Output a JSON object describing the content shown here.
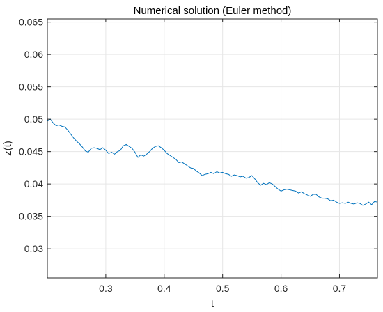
{
  "chart_data": {
    "type": "line",
    "title": "Numerical solution (Euler method)",
    "xlabel": "t",
    "ylabel": "z(t)",
    "xlim": [
      0.2,
      0.765
    ],
    "ylim": [
      0.0255,
      0.0655
    ],
    "xticks": [
      0.3,
      0.4,
      0.5,
      0.6,
      0.7
    ],
    "xtick_labels": [
      "0.3",
      "0.4",
      "0.5",
      "0.6",
      "0.7"
    ],
    "yticks": [
      0.03,
      0.035,
      0.04,
      0.045,
      0.05,
      0.055,
      0.06,
      0.065
    ],
    "ytick_labels": [
      "0.03",
      "0.035",
      "0.04",
      "0.045",
      "0.05",
      "0.055",
      "0.06",
      "0.065"
    ],
    "grid": true,
    "series": [
      {
        "color": "#0072BD",
        "x": [
          0.2,
          0.205,
          0.21,
          0.215,
          0.22,
          0.225,
          0.23,
          0.235,
          0.24,
          0.245,
          0.25,
          0.255,
          0.26,
          0.265,
          0.27,
          0.275,
          0.28,
          0.285,
          0.29,
          0.295,
          0.3,
          0.305,
          0.31,
          0.315,
          0.32,
          0.325,
          0.33,
          0.335,
          0.34,
          0.345,
          0.35,
          0.355,
          0.36,
          0.365,
          0.37,
          0.375,
          0.38,
          0.385,
          0.39,
          0.395,
          0.4,
          0.405,
          0.41,
          0.415,
          0.42,
          0.425,
          0.43,
          0.435,
          0.44,
          0.445,
          0.45,
          0.455,
          0.46,
          0.465,
          0.47,
          0.475,
          0.48,
          0.485,
          0.49,
          0.495,
          0.5,
          0.505,
          0.51,
          0.515,
          0.52,
          0.525,
          0.53,
          0.535,
          0.54,
          0.545,
          0.55,
          0.555,
          0.56,
          0.565,
          0.57,
          0.575,
          0.58,
          0.585,
          0.59,
          0.595,
          0.6,
          0.605,
          0.61,
          0.615,
          0.62,
          0.625,
          0.63,
          0.635,
          0.64,
          0.645,
          0.65,
          0.655,
          0.66,
          0.665,
          0.67,
          0.675,
          0.68,
          0.685,
          0.69,
          0.695,
          0.7,
          0.705,
          0.71,
          0.715,
          0.72,
          0.725,
          0.73,
          0.735,
          0.74,
          0.745,
          0.75,
          0.755,
          0.76,
          0.765
        ],
        "y": [
          0.0497,
          0.05,
          0.0494,
          0.049,
          0.0491,
          0.0489,
          0.0488,
          0.0483,
          0.0477,
          0.0471,
          0.0466,
          0.0462,
          0.0457,
          0.0451,
          0.0449,
          0.0455,
          0.0456,
          0.0455,
          0.0453,
          0.0456,
          0.0452,
          0.0447,
          0.0449,
          0.0446,
          0.045,
          0.0452,
          0.0459,
          0.0461,
          0.0458,
          0.0455,
          0.0449,
          0.0441,
          0.0445,
          0.0443,
          0.0446,
          0.045,
          0.0455,
          0.0458,
          0.0459,
          0.0456,
          0.0452,
          0.0447,
          0.0444,
          0.0441,
          0.0438,
          0.0433,
          0.0434,
          0.0431,
          0.0428,
          0.0425,
          0.0424,
          0.042,
          0.0417,
          0.0413,
          0.0415,
          0.0416,
          0.0418,
          0.0416,
          0.0419,
          0.0417,
          0.0418,
          0.0416,
          0.0415,
          0.0412,
          0.0414,
          0.0413,
          0.0411,
          0.0412,
          0.0409,
          0.041,
          0.0413,
          0.0408,
          0.0402,
          0.0398,
          0.0401,
          0.0399,
          0.0402,
          0.04,
          0.0396,
          0.0392,
          0.0389,
          0.0391,
          0.0392,
          0.0391,
          0.039,
          0.0389,
          0.0386,
          0.0388,
          0.0385,
          0.0383,
          0.0381,
          0.0384,
          0.0384,
          0.038,
          0.0378,
          0.0378,
          0.0377,
          0.0374,
          0.0375,
          0.0372,
          0.037,
          0.0371,
          0.037,
          0.0372,
          0.037,
          0.0369,
          0.0371,
          0.037,
          0.0367,
          0.0369,
          0.0372,
          0.0368,
          0.0373,
          0.0372
        ]
      }
    ]
  }
}
